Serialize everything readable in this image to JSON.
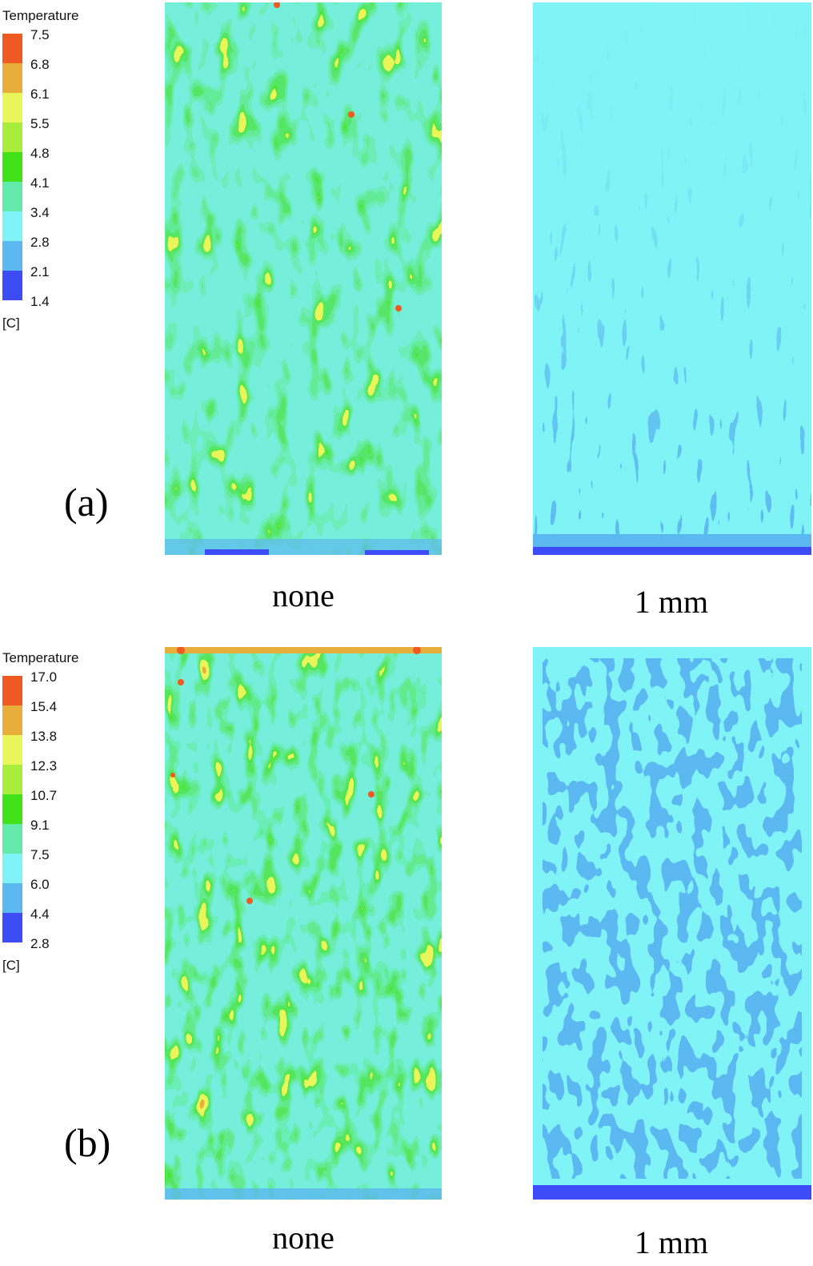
{
  "colors": {
    "scale": [
      "#3d4cf5",
      "#5cb8f0",
      "#7ff3f5",
      "#63e9ac",
      "#42e21b",
      "#a8ec3c",
      "#e8f65c",
      "#e8ae3c",
      "#ee5a22"
    ]
  },
  "figure": {
    "rows": [
      {
        "letter": "(a)",
        "legend": {
          "title": "Temperature",
          "ticks": [
            "7.5",
            "6.8",
            "6.1",
            "5.5",
            "4.8",
            "4.1",
            "3.4",
            "2.8",
            "2.1",
            "1.4"
          ],
          "unit": "[C]"
        },
        "left_caption": "none",
        "right_caption": "1 mm"
      },
      {
        "letter": "(b)",
        "legend": {
          "title": "Temperature",
          "ticks": [
            "17.0",
            "15.4",
            "13.8",
            "12.3",
            "10.7",
            "9.1",
            "7.5",
            "6.0",
            "4.4",
            "2.8"
          ],
          "unit": "[C]"
        },
        "left_caption": "none",
        "right_caption": "1 mm"
      }
    ]
  }
}
